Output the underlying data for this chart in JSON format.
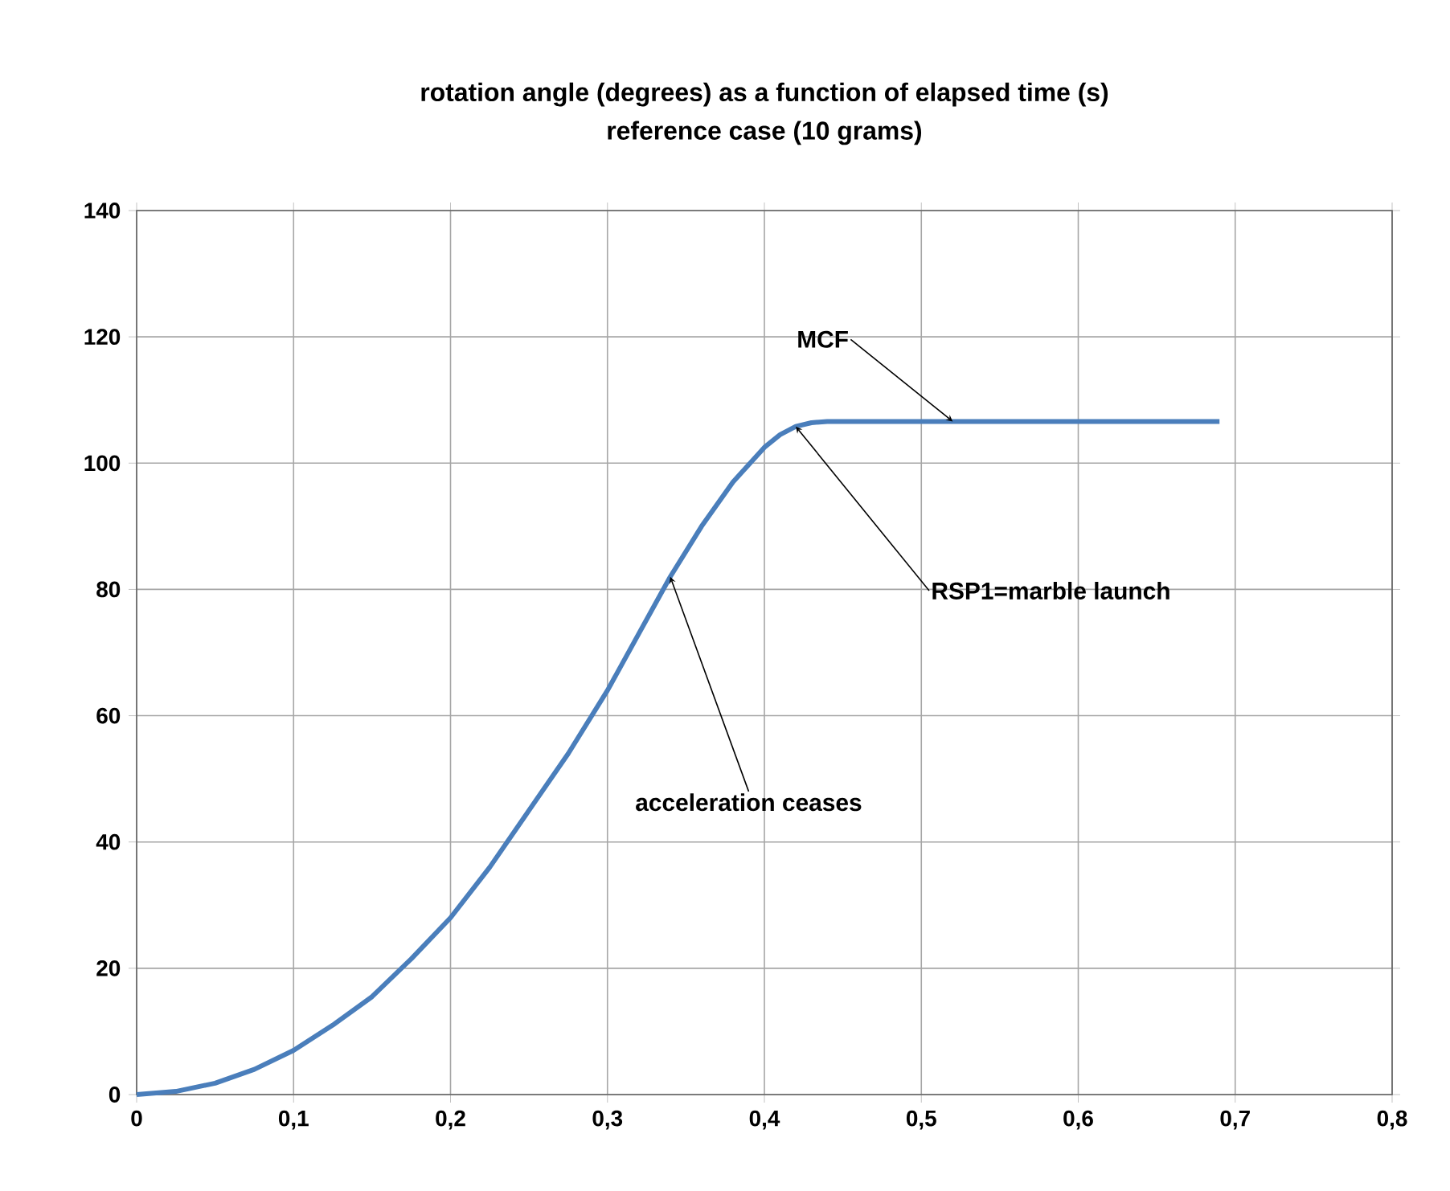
{
  "chart_data": {
    "type": "line",
    "title": "rotation angle (degrees) as a function of elapsed time (s)",
    "subtitle": "reference case (10 grams)",
    "series": [
      {
        "color": "#4a7ebb",
        "x": [
          0,
          0.025,
          0.05,
          0.075,
          0.1,
          0.125,
          0.15,
          0.175,
          0.2,
          0.225,
          0.25,
          0.275,
          0.3,
          0.32,
          0.34,
          0.36,
          0.38,
          0.4,
          0.41,
          0.42,
          0.43,
          0.44,
          0.5,
          0.6,
          0.69
        ],
        "values": [
          0,
          0.5,
          1.8,
          4,
          7,
          11,
          15.5,
          21.5,
          28,
          36,
          45,
          54,
          64,
          73,
          82,
          90,
          97,
          102.5,
          104.5,
          105.8,
          106.4,
          106.6,
          106.6,
          106.6,
          106.6
        ]
      }
    ],
    "xlim": [
      0,
      0.8
    ],
    "ylim": [
      0,
      140
    ],
    "xticks": [
      0,
      {
        "value": 0.1,
        "label": "0,1"
      },
      {
        "value": 0.2,
        "label": "0,2"
      },
      {
        "value": 0.3,
        "label": "0,3"
      },
      {
        "value": 0.4,
        "label": "0,4"
      },
      {
        "value": 0.5,
        "label": "0,5"
      },
      {
        "value": 0.6,
        "label": "0,6"
      },
      {
        "value": 0.7,
        "label": "0,7"
      },
      {
        "value": 0.8,
        "label": "0,8"
      }
    ],
    "yticks": [
      0,
      20,
      40,
      60,
      80,
      100,
      120,
      140
    ],
    "grid": true,
    "marker": "none",
    "line_style": "solid",
    "annotations": [
      {
        "text": "MCF",
        "x": 0.52,
        "y": 106.6
      },
      {
        "text": "RSP1=marble launch",
        "x": 0.42,
        "y": 105.8
      },
      {
        "text": "acceleration ceases",
        "x": 0.34,
        "y": 82
      }
    ]
  }
}
